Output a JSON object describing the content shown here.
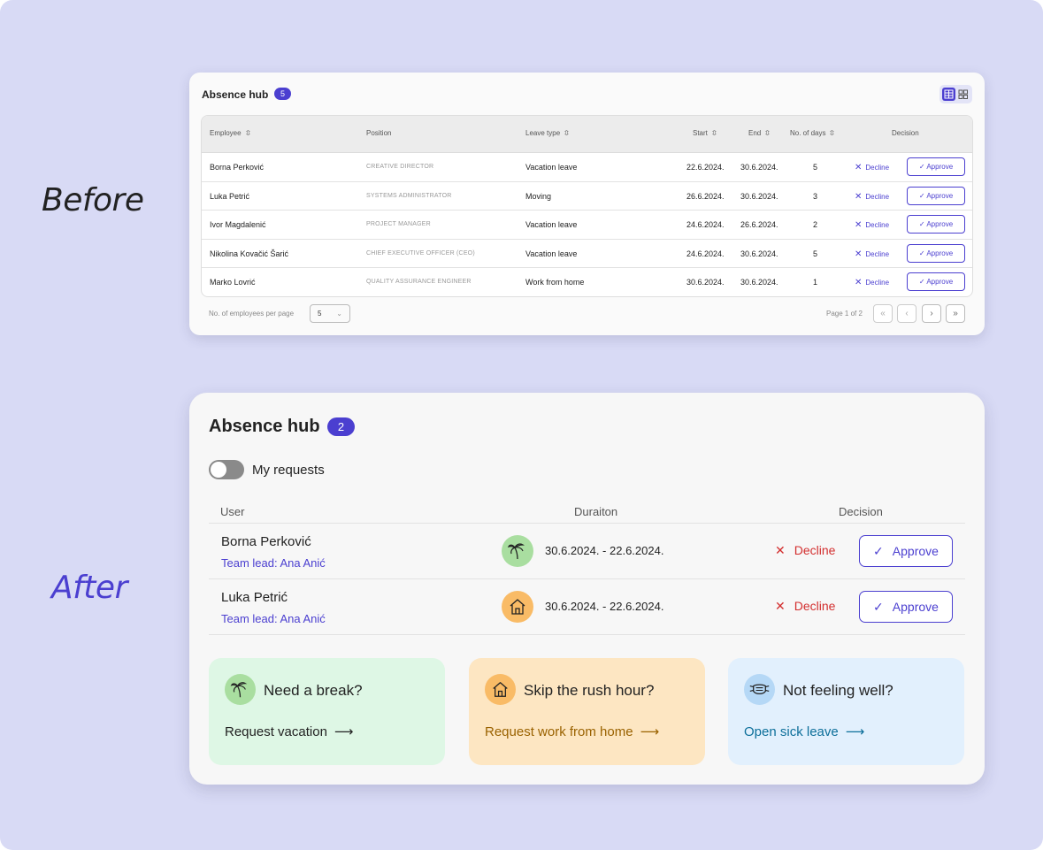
{
  "labels": {
    "before": "Before",
    "after": "After"
  },
  "before": {
    "title": "Absence hub",
    "badge": "5",
    "columns": [
      "Employee",
      "Position",
      "Leave type",
      "Start",
      "End",
      "No. of days",
      "Decision"
    ],
    "rows": [
      {
        "name": "Borna Perković",
        "position": "CREATIVE DIRECTOR",
        "leave": "Vacation leave",
        "start": "22.6.2024.",
        "end": "30.6.2024.",
        "days": "5"
      },
      {
        "name": "Luka Petrić",
        "position": "SYSTEMS ADMINISTRATOR",
        "leave": "Moving",
        "start": "26.6.2024.",
        "end": "30.6.2024.",
        "days": "3"
      },
      {
        "name": "Ivor Magdalenić",
        "position": "PROJECT MANAGER",
        "leave": "Vacation leave",
        "start": "24.6.2024.",
        "end": "26.6.2024.",
        "days": "2"
      },
      {
        "name": "Nikolina Kovačić Šarić",
        "position": "CHIEF EXECUTIVE OFFICER (CEO)",
        "leave": "Vacation leave",
        "start": "24.6.2024.",
        "end": "30.6.2024.",
        "days": "5"
      },
      {
        "name": "Marko Lovrić",
        "position": "QUALITY ASSURANCE ENGINEER",
        "leave": "Work from home",
        "start": "30.6.2024.",
        "end": "30.6.2024.",
        "days": "1"
      }
    ],
    "decline_label": "Decline",
    "approve_label": "Approve",
    "per_page_label": "No. of employees per page",
    "per_page_value": "5",
    "page_info": "Page 1 of 2"
  },
  "after": {
    "title": "Absence hub",
    "badge": "2",
    "toggle_label": "My requests",
    "toggle_on": false,
    "columns": {
      "user": "User",
      "duration": "Duraiton",
      "decision": "Decision"
    },
    "rows": [
      {
        "name": "Borna Perković",
        "lead": "Team lead: Ana Anić",
        "dates": "30.6.2024. - 22.6.2024.",
        "icon": "palm-tree-icon"
      },
      {
        "name": "Luka Petrić",
        "lead": "Team lead: Ana Anić",
        "dates": "30.6.2024. - 22.6.2024.",
        "icon": "house-icon"
      }
    ],
    "decline_label": "Decline",
    "approve_label": "Approve",
    "cards": [
      {
        "title": "Need a break?",
        "link": "Request vacation",
        "icon": "palm-tree-icon",
        "bg": "#def7e5",
        "icon_bg": "#a9dea0",
        "link_color": "#222222"
      },
      {
        "title": "Skip the rush hour?",
        "link": "Request work from home",
        "icon": "house-icon",
        "bg": "#fde6c2",
        "icon_bg": "#f9bb66",
        "link_color": "#9a6200"
      },
      {
        "title": "Not feeling well?",
        "link": "Open sick leave",
        "icon": "face-mask-icon",
        "bg": "#e2f0fd",
        "icon_bg": "#b5d8f6",
        "link_color": "#0d6f9a"
      }
    ]
  },
  "colors": {
    "accent": "#4b3fd0",
    "decline_red": "#d32f2f",
    "background": "#d8daf5"
  }
}
